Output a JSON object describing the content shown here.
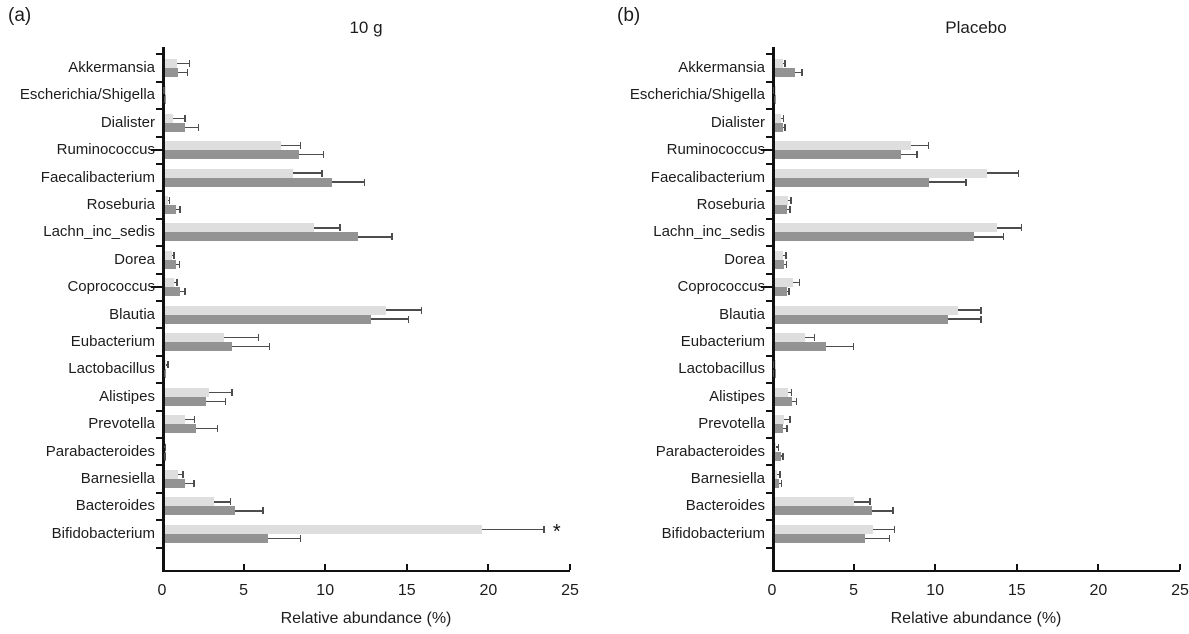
{
  "figure": {
    "background": "#ffffff",
    "text_color": "#1c1c1c",
    "axis_color": "#111111",
    "error_bar_color": "#4d4d4d"
  },
  "chart_data": [
    {
      "type": "bar",
      "orientation": "horizontal",
      "panel_letter": "(a)",
      "title": "10 g",
      "xlabel": "Relative abundance (%)",
      "xlim": [
        0,
        25
      ],
      "xticks": [
        0,
        5,
        10,
        15,
        20,
        25
      ],
      "grid": false,
      "legend_position": "none",
      "categories": [
        "Akkermansia",
        "Escherichia/Shigella",
        "Dialister",
        "Ruminococcus",
        "Faecalibacterium",
        "Roseburia",
        "Lachn_inc_sedis",
        "Dorea",
        "Coprococcus",
        "Blautia",
        "Eubacterium",
        "Lactobacillus",
        "Alistipes",
        "Prevotella",
        "Parabacteroides",
        "Barnesiella",
        "Bacteroides",
        "Bifidobacterium"
      ],
      "major_tick_categories": [
        "Ruminococcus",
        "Coprococcus"
      ],
      "series": [
        {
          "name": "light_gray_bars",
          "color": "#dedede",
          "values": [
            0.9,
            0.08,
            0.7,
            7.3,
            8.0,
            0.35,
            9.3,
            0.6,
            0.76,
            13.7,
            3.8,
            0.25,
            2.9,
            1.4,
            0.1,
            0.95,
            3.2,
            19.6
          ],
          "errors": [
            0.8,
            0.05,
            0.7,
            1.2,
            1.8,
            0.1,
            1.6,
            0.15,
            0.15,
            2.2,
            2.1,
            0.12,
            1.4,
            0.6,
            0.1,
            0.35,
            1.0,
            3.8
          ]
        },
        {
          "name": "dark_gray_bars",
          "color": "#939393",
          "values": [
            1.0,
            0.1,
            1.4,
            8.4,
            10.4,
            0.85,
            12.0,
            0.85,
            1.1,
            12.8,
            4.3,
            0.1,
            2.7,
            2.1,
            0.12,
            1.4,
            4.5,
            6.5
          ],
          "errors": [
            0.55,
            0.05,
            0.85,
            1.5,
            2.0,
            0.25,
            2.1,
            0.22,
            0.3,
            2.3,
            2.3,
            0.05,
            1.2,
            1.3,
            0.05,
            0.55,
            1.7,
            2.0
          ]
        }
      ],
      "annotations": [
        {
          "text": "*",
          "category": "Bifidobacterium",
          "series_index": 0
        }
      ]
    },
    {
      "type": "bar",
      "orientation": "horizontal",
      "panel_letter": "(b)",
      "title": "Placebo",
      "xlabel": "Relative abundance (%)",
      "xlim": [
        0,
        25
      ],
      "xticks": [
        0,
        5,
        10,
        15,
        20,
        25
      ],
      "grid": false,
      "legend_position": "none",
      "categories": [
        "Akkermansia",
        "Escherichia/Shigella",
        "Dialister",
        "Ruminococcus",
        "Faecalibacterium",
        "Roseburia",
        "Lachn_inc_sedis",
        "Dorea",
        "Coprococcus",
        "Blautia",
        "Eubacterium",
        "Lactobacillus",
        "Alistipes",
        "Prevotella",
        "Parabacteroides",
        "Barnesiella",
        "Bacteroides",
        "Bifidobacterium"
      ],
      "major_tick_categories": [
        "Ruminococcus",
        "Coprococcus"
      ],
      "series": [
        {
          "name": "light_gray_bars",
          "color": "#dedede",
          "values": [
            0.65,
            0.06,
            0.55,
            8.5,
            13.2,
            1.0,
            13.8,
            0.7,
            1.3,
            11.4,
            2.0,
            0.06,
            0.95,
            0.76,
            0.25,
            0.33,
            5.0,
            6.2
          ],
          "errors": [
            0.15,
            0.04,
            0.15,
            1.1,
            1.9,
            0.17,
            1.5,
            0.15,
            0.4,
            1.4,
            0.6,
            0.04,
            0.25,
            0.35,
            0.15,
            0.17,
            1.0,
            1.3
          ]
        },
        {
          "name": "dark_gray_bars",
          "color": "#939393",
          "values": [
            1.4,
            0.1,
            0.65,
            7.9,
            9.6,
            0.9,
            12.4,
            0.76,
            0.9,
            10.8,
            3.3,
            0.06,
            1.2,
            0.66,
            0.55,
            0.45,
            6.1,
            5.7
          ],
          "errors": [
            0.45,
            0.05,
            0.15,
            1.0,
            2.3,
            0.2,
            1.8,
            0.12,
            0.15,
            2.0,
            1.7,
            0.04,
            0.3,
            0.25,
            0.12,
            0.12,
            1.3,
            1.5
          ]
        }
      ],
      "annotations": []
    }
  ]
}
